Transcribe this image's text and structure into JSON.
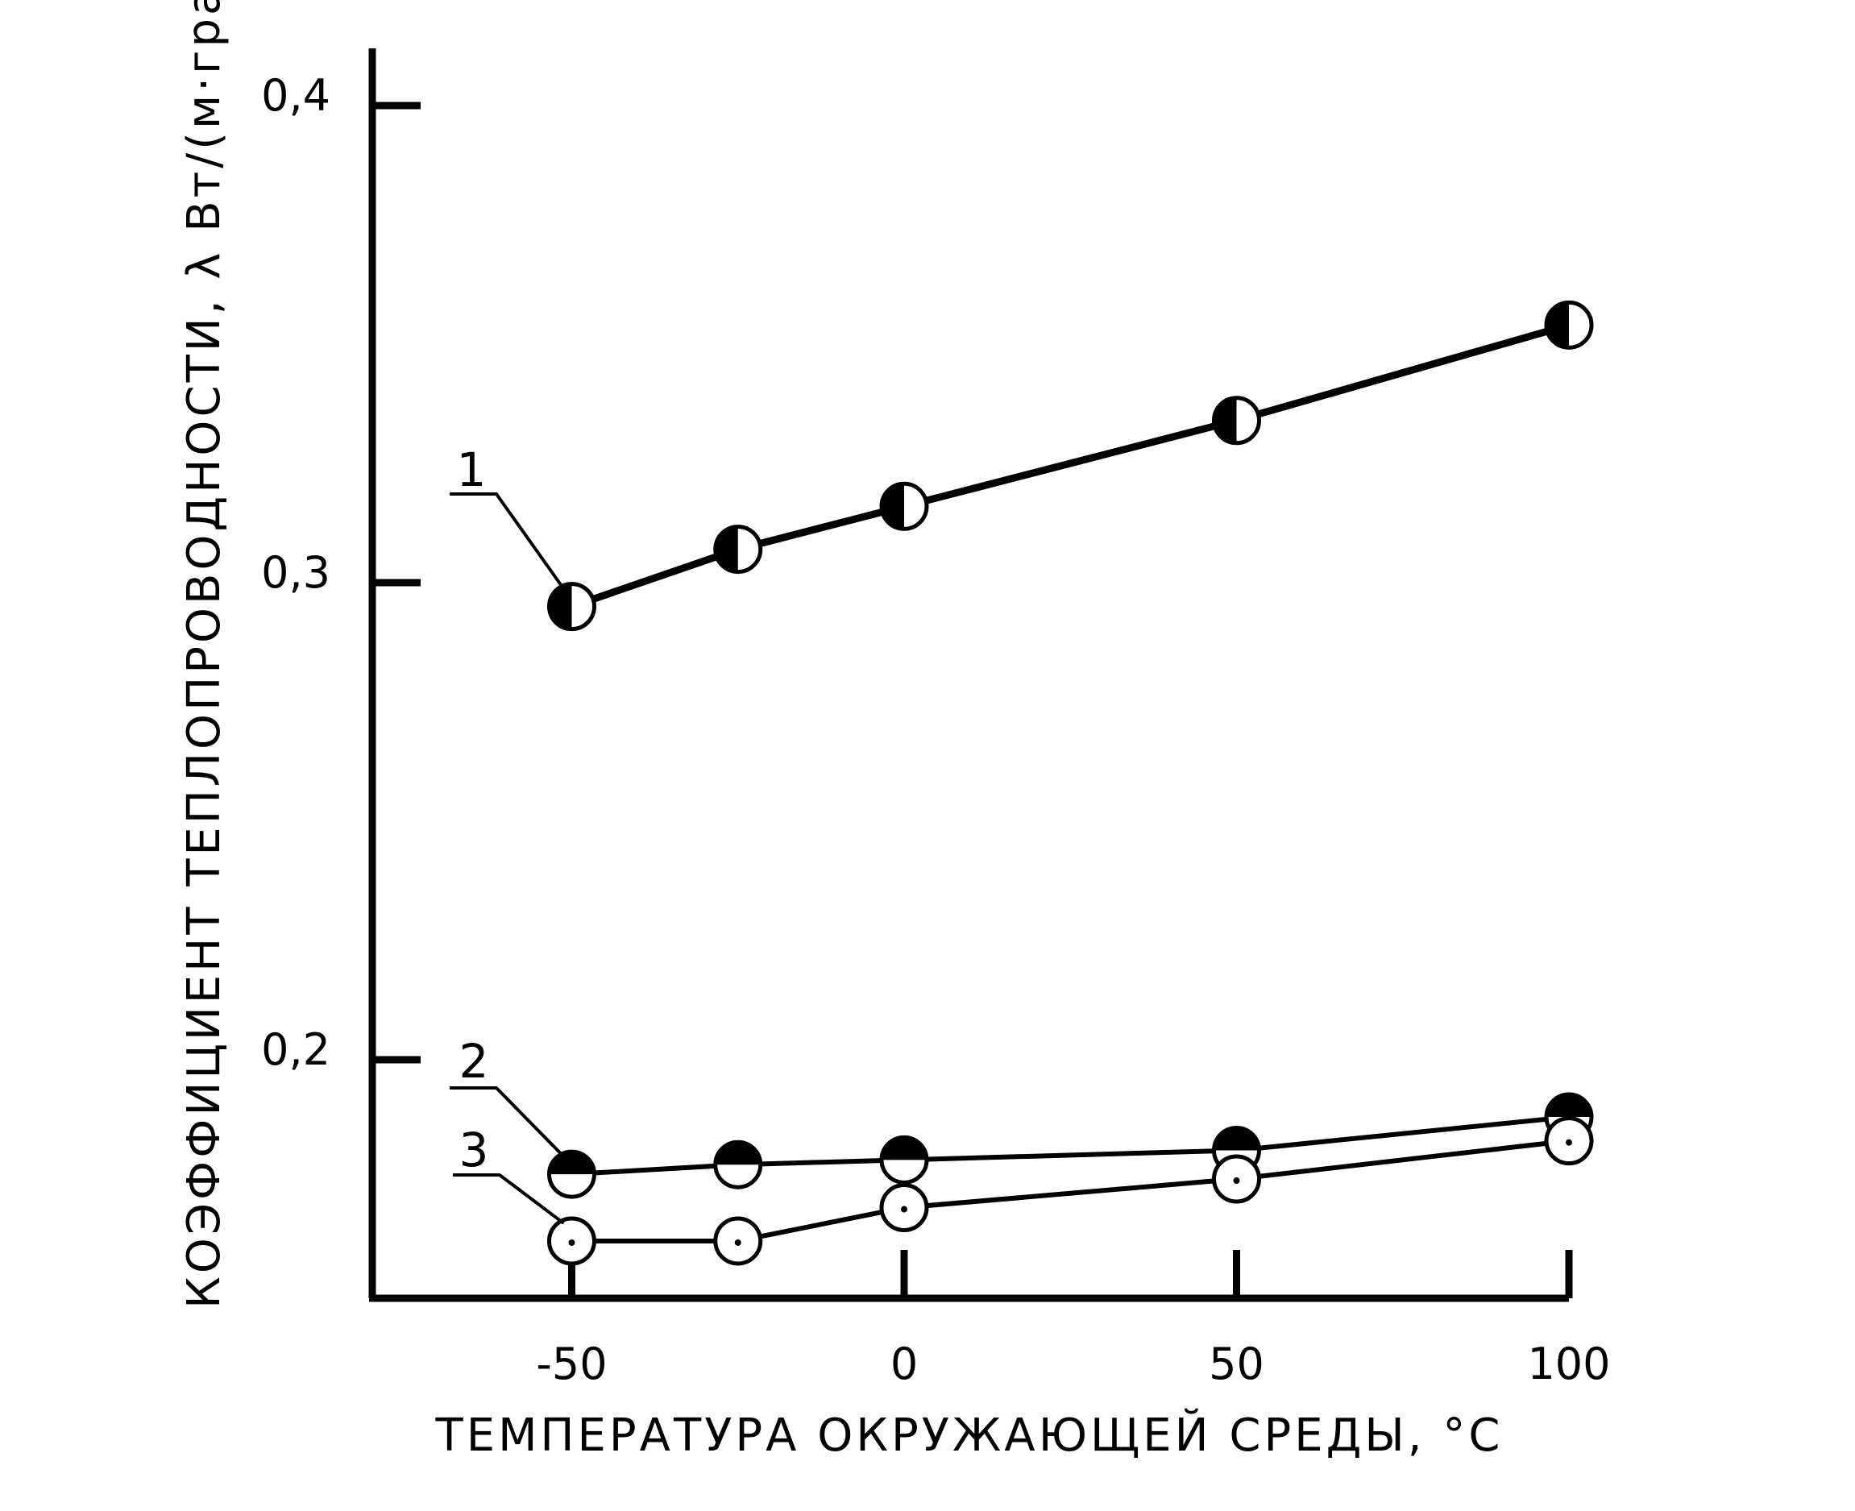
{
  "chart_data": {
    "type": "line",
    "title": "",
    "xlabel": "ТЕМПЕРАТУРА ОКРУЖАЮЩЕЙ СРЕДЫ, °С",
    "ylabel": "КОЭФФИЦИЕНТ ТЕПЛОПРОВОДНОСТИ, λ Вт/(м·град)",
    "xlim": [
      -80,
      100
    ],
    "ylim": [
      0.15,
      0.412
    ],
    "x_ticks": [
      {
        "value": -50,
        "label": "-50"
      },
      {
        "value": 0,
        "label": "0"
      },
      {
        "value": 50,
        "label": "50"
      },
      {
        "value": 100,
        "label": "100"
      }
    ],
    "y_ticks": [
      {
        "value": 0.2,
        "label": "0,2"
      },
      {
        "value": 0.3,
        "label": "0,3"
      },
      {
        "value": 0.4,
        "label": "0,4"
      }
    ],
    "grid": false,
    "legend": "none",
    "series": [
      {
        "label": "1",
        "marker": "left-half-filled",
        "points": [
          {
            "x": -50,
            "y": 0.295
          },
          {
            "x": -25,
            "y": 0.307
          },
          {
            "x": 0,
            "y": 0.316
          },
          {
            "x": 50,
            "y": 0.334
          },
          {
            "x": 100,
            "y": 0.354
          }
        ]
      },
      {
        "label": "2",
        "marker": "top-half-filled",
        "points": [
          {
            "x": -50,
            "y": 0.176
          },
          {
            "x": -25,
            "y": 0.178
          },
          {
            "x": 0,
            "y": 0.179
          },
          {
            "x": 50,
            "y": 0.181
          },
          {
            "x": 100,
            "y": 0.188
          }
        ]
      },
      {
        "label": "3",
        "marker": "open-circle",
        "points": [
          {
            "x": -50,
            "y": 0.162
          },
          {
            "x": -25,
            "y": 0.162
          },
          {
            "x": 0,
            "y": 0.169
          },
          {
            "x": 50,
            "y": 0.175
          },
          {
            "x": 100,
            "y": 0.183
          }
        ]
      }
    ]
  }
}
